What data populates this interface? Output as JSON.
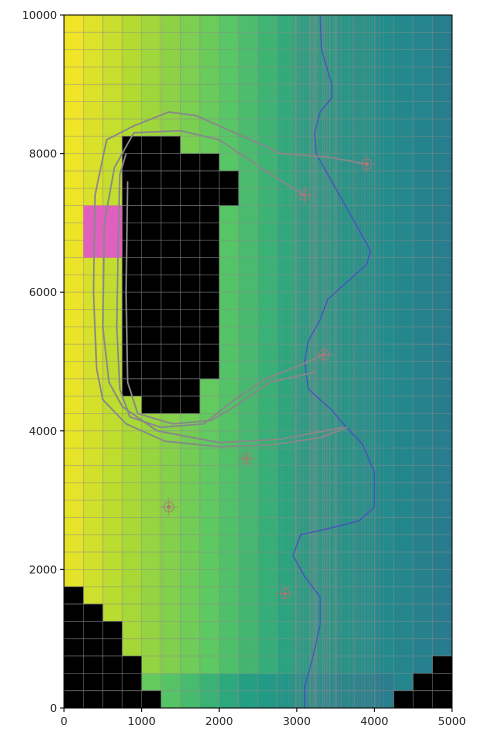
{
  "chart_data": {
    "type": "heatmap",
    "title": "",
    "xlabel": "",
    "ylabel": "",
    "xlim": [
      0,
      5000
    ],
    "ylim": [
      0,
      10000
    ],
    "x_ticks": [
      0,
      1000,
      2000,
      3000,
      4000,
      5000
    ],
    "y_ticks": [
      0,
      2000,
      4000,
      6000,
      8000,
      10000
    ],
    "x_tick_labels": [
      "0",
      "1000",
      "2000",
      "3000",
      "4000",
      "5000"
    ],
    "y_tick_labels": [
      "0",
      "2000",
      "4000",
      "6000",
      "8000",
      "10000"
    ],
    "grid": true,
    "colormap": "viridis",
    "field_gradient": "values decrease from left (yellow) to right (teal)",
    "colors": {
      "inactive_cells": "#000000",
      "source_zone": "#e060c0",
      "river": "#5040d0",
      "pathlines": "#888888",
      "well_marker": "#aa7777"
    },
    "inactive_blocks": [
      {
        "x0": 750,
        "x1": 1500,
        "y0": 8000,
        "y1": 8250
      },
      {
        "x0": 750,
        "x1": 2000,
        "y0": 7750,
        "y1": 8000
      },
      {
        "x0": 750,
        "x1": 2250,
        "y0": 7250,
        "y1": 7750
      },
      {
        "x0": 750,
        "x1": 2000,
        "y0": 4750,
        "y1": 7250
      },
      {
        "x0": 750,
        "x1": 1750,
        "y0": 4500,
        "y1": 4750
      },
      {
        "x0": 1000,
        "x1": 1750,
        "y0": 4250,
        "y1": 4500
      },
      {
        "x0": 0,
        "x1": 250,
        "y0": 1500,
        "y1": 1750
      },
      {
        "x0": 0,
        "x1": 500,
        "y0": 1250,
        "y1": 1500
      },
      {
        "x0": 0,
        "x1": 750,
        "y0": 750,
        "y1": 1250
      },
      {
        "x0": 0,
        "x1": 1000,
        "y0": 250,
        "y1": 750
      },
      {
        "x0": 0,
        "x1": 1250,
        "y0": 0,
        "y1": 250
      },
      {
        "x0": 4750,
        "x1": 5000,
        "y0": 500,
        "y1": 750
      },
      {
        "x0": 4500,
        "x1": 5000,
        "y0": 250,
        "y1": 500
      },
      {
        "x0": 4250,
        "x1": 5000,
        "y0": 0,
        "y1": 250
      }
    ],
    "source_zone": {
      "x0": 250,
      "x1": 750,
      "y0": 6500,
      "y1": 7250
    },
    "river": [
      [
        3300,
        10000
      ],
      [
        3320,
        9500
      ],
      [
        3450,
        9000
      ],
      [
        3450,
        8800
      ],
      [
        3300,
        8600
      ],
      [
        3230,
        8300
      ],
      [
        3250,
        8000
      ],
      [
        3450,
        7600
      ],
      [
        3550,
        7400
      ],
      [
        3750,
        7000
      ],
      [
        3950,
        6600
      ],
      [
        3900,
        6400
      ],
      [
        3600,
        6100
      ],
      [
        3400,
        5900
      ],
      [
        3300,
        5600
      ],
      [
        3150,
        5300
      ],
      [
        3100,
        5000
      ],
      [
        3150,
        4600
      ],
      [
        3450,
        4300
      ],
      [
        3600,
        4100
      ],
      [
        3850,
        3800
      ],
      [
        4000,
        3400
      ],
      [
        4000,
        2900
      ],
      [
        3800,
        2700
      ],
      [
        3450,
        2600
      ],
      [
        3050,
        2500
      ],
      [
        2950,
        2200
      ],
      [
        3100,
        1900
      ],
      [
        3300,
        1600
      ],
      [
        3300,
        1200
      ],
      [
        3200,
        700
      ],
      [
        3100,
        300
      ],
      [
        3100,
        0
      ]
    ],
    "pathlines": [
      [
        [
          3900,
          7850
        ],
        [
          3400,
          7950
        ],
        [
          2800,
          8000
        ],
        [
          2300,
          8250
        ],
        [
          1700,
          8550
        ],
        [
          1350,
          8600
        ],
        [
          900,
          8400
        ],
        [
          550,
          8200
        ],
        [
          400,
          7400
        ],
        [
          380,
          6000
        ],
        [
          420,
          4900
        ],
        [
          500,
          4450
        ],
        [
          800,
          4100
        ],
        [
          1300,
          3850
        ],
        [
          2000,
          3770
        ],
        [
          2700,
          3800
        ],
        [
          3300,
          3900
        ],
        [
          3650,
          4050
        ]
      ],
      [
        [
          3100,
          7400
        ],
        [
          2600,
          7750
        ],
        [
          2000,
          8200
        ],
        [
          1500,
          8330
        ],
        [
          900,
          8300
        ],
        [
          650,
          7800
        ],
        [
          520,
          7000
        ],
        [
          500,
          5500
        ],
        [
          580,
          4700
        ],
        [
          750,
          4350
        ],
        [
          1200,
          4000
        ],
        [
          2000,
          3830
        ],
        [
          2800,
          3880
        ],
        [
          3600,
          4050
        ]
      ],
      [
        [
          3350,
          5100
        ],
        [
          3050,
          4950
        ],
        [
          2600,
          4750
        ],
        [
          2200,
          4450
        ],
        [
          1800,
          4100
        ],
        [
          1250,
          4050
        ],
        [
          850,
          4200
        ],
        [
          720,
          4600
        ],
        [
          680,
          5500
        ],
        [
          700,
          6800
        ],
        [
          720,
          7700
        ],
        [
          800,
          8000
        ]
      ],
      [
        [
          3250,
          4850
        ],
        [
          2650,
          4700
        ],
        [
          2200,
          4350
        ],
        [
          1900,
          4150
        ],
        [
          1400,
          4100
        ],
        [
          950,
          4250
        ],
        [
          820,
          4700
        ],
        [
          800,
          6000
        ],
        [
          820,
          7600
        ]
      ]
    ],
    "wells": [
      {
        "x": 3900,
        "y": 7850
      },
      {
        "x": 3100,
        "y": 7400
      },
      {
        "x": 3350,
        "y": 5100
      },
      {
        "x": 2350,
        "y": 3600
      },
      {
        "x": 1350,
        "y": 2900
      },
      {
        "x": 2850,
        "y": 1650
      }
    ]
  }
}
